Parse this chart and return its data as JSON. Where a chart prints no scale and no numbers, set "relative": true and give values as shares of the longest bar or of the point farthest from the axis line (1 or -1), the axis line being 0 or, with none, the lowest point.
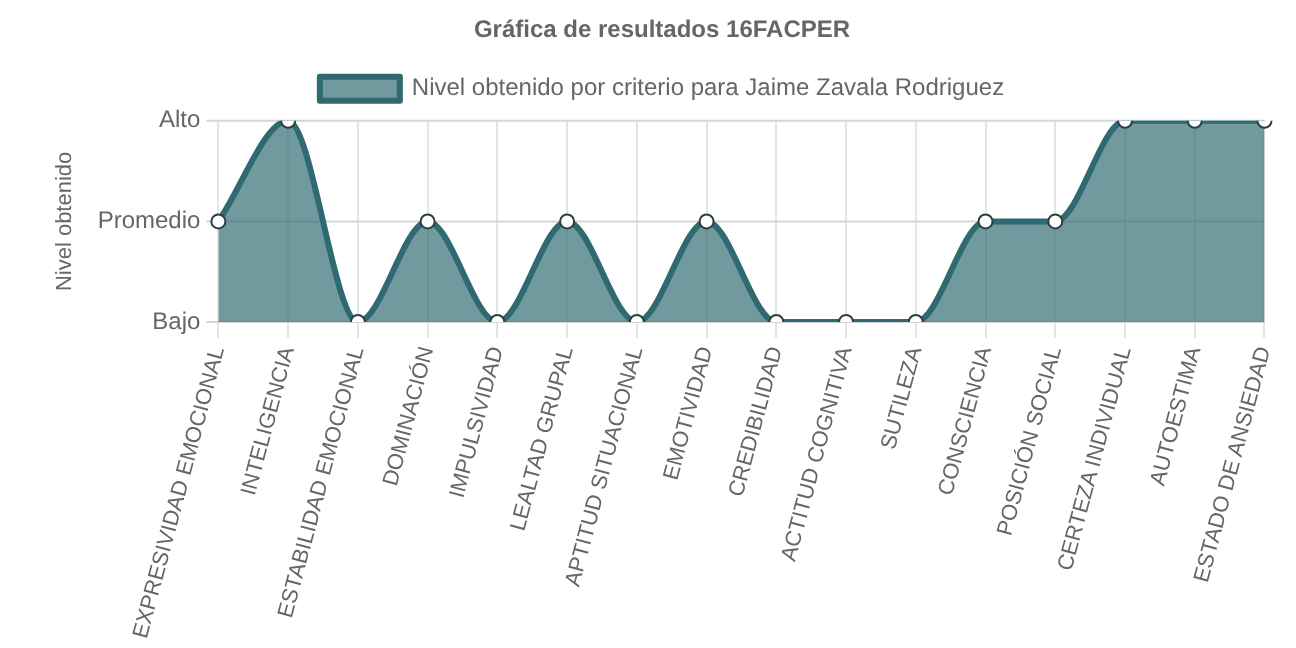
{
  "chart_data": {
    "type": "area",
    "title": "Gráfica de resultados 16FACPER",
    "ylabel": "Nivel obtenido",
    "categories": [
      "EXPRESIVIDAD EMOCIONAL",
      "INTELIGENCIA",
      "ESTABILIDAD EMOCIONAL",
      "DOMINACIÓN",
      "IMPULSIVIDAD",
      "LEALTAD GRUPAL",
      "APTITUD SITUACIONAL",
      "EMOTIVIDAD",
      "CREDIBILIDAD",
      "ACTITUD COGNITIVA",
      "SUTILEZA",
      "CONSCIENCIA",
      "POSICIÓN SOCIAL",
      "CERTEZA INDIVIDUAL",
      "AUTOESTIMA",
      "ESTADO DE ANSIEDAD"
    ],
    "series": [
      {
        "name": "Nivel obtenido por criterio para Jaime Zavala Rodriguez",
        "color": "#2e6a70",
        "values": [
          0.5,
          1,
          0,
          0.5,
          0,
          0.5,
          0,
          0.5,
          0,
          0,
          0,
          0.5,
          0.5,
          1,
          1,
          1
        ]
      }
    ],
    "relative": true,
    "ref_lines": [
      {
        "axis": "y",
        "value": 1,
        "label": "Alto"
      },
      {
        "axis": "y",
        "value": 0.5,
        "label": "Promedio"
      },
      {
        "axis": "y",
        "value": 0,
        "label": "Bajo"
      }
    ],
    "grid": "x",
    "legend": "top",
    "marker": "circle"
  }
}
